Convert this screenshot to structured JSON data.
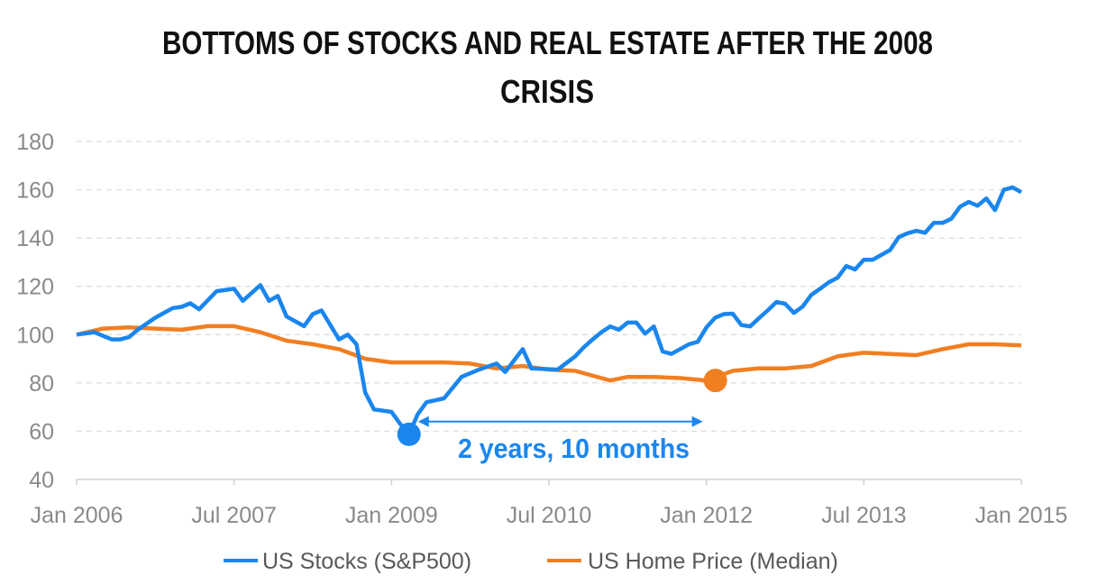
{
  "chart_data": {
    "type": "line",
    "title_lines": [
      "BOTTOMS OF STOCKS AND REAL ESTATE AFTER THE 2008",
      "CRISIS"
    ],
    "xlabel": "",
    "ylabel": "",
    "ylim": [
      40,
      180
    ],
    "yticks": [
      40,
      60,
      80,
      100,
      120,
      140,
      160,
      180
    ],
    "xlim": [
      "2006-01",
      "2015-01"
    ],
    "xticks": [
      {
        "date": "2006-01",
        "label": "Jan 2006"
      },
      {
        "date": "2007-07",
        "label": "Jul 2007"
      },
      {
        "date": "2009-01",
        "label": "Jan 2009"
      },
      {
        "date": "2010-07",
        "label": "Jul 2010"
      },
      {
        "date": "2012-01",
        "label": "Jan 2012"
      },
      {
        "date": "2013-07",
        "label": "Jul 2013"
      },
      {
        "date": "2015-01",
        "label": "Jan 2015"
      }
    ],
    "grid": true,
    "legend_position": "bottom",
    "series": [
      {
        "name": "US Stocks (S&P500)",
        "color": "#1a86ee",
        "points": [
          [
            "2006-01",
            100
          ],
          [
            "2006-03",
            101
          ],
          [
            "2006-05",
            98
          ],
          [
            "2006-06",
            98
          ],
          [
            "2006-07",
            99
          ],
          [
            "2006-08",
            102
          ],
          [
            "2006-10",
            107
          ],
          [
            "2006-12",
            111
          ],
          [
            "2007-01",
            111.5
          ],
          [
            "2007-02",
            113
          ],
          [
            "2007-03",
            110.5
          ],
          [
            "2007-05",
            118
          ],
          [
            "2007-07",
            119
          ],
          [
            "2007-08",
            114
          ],
          [
            "2007-10",
            120.5
          ],
          [
            "2007-11",
            114
          ],
          [
            "2007-12",
            116
          ],
          [
            "2008-01",
            107.5
          ],
          [
            "2008-03",
            103.5
          ],
          [
            "2008-04",
            108.5
          ],
          [
            "2008-05",
            110
          ],
          [
            "2008-07",
            98
          ],
          [
            "2008-08",
            100
          ],
          [
            "2008-09",
            96
          ],
          [
            "2008-10",
            76
          ],
          [
            "2008-11",
            69
          ],
          [
            "2009-01",
            68
          ],
          [
            "2009-02",
            63
          ],
          [
            "2009-03",
            58.7
          ],
          [
            "2009-04",
            67
          ],
          [
            "2009-05",
            72
          ],
          [
            "2009-07",
            73.6
          ],
          [
            "2009-08",
            78
          ],
          [
            "2009-09",
            82.5
          ],
          [
            "2009-11",
            85.5
          ],
          [
            "2010-01",
            88
          ],
          [
            "2010-02",
            84.5
          ],
          [
            "2010-04",
            94
          ],
          [
            "2010-05",
            86
          ],
          [
            "2010-08",
            85.5
          ],
          [
            "2010-10",
            91
          ],
          [
            "2010-11",
            94.8
          ],
          [
            "2010-12",
            98
          ],
          [
            "2011-01",
            101
          ],
          [
            "2011-02",
            103.4
          ],
          [
            "2011-03",
            102
          ],
          [
            "2011-04",
            105
          ],
          [
            "2011-05",
            105
          ],
          [
            "2011-06",
            100.4
          ],
          [
            "2011-07",
            103.4
          ],
          [
            "2011-08",
            93
          ],
          [
            "2011-09",
            92
          ],
          [
            "2011-11",
            96
          ],
          [
            "2011-12",
            97
          ],
          [
            "2012-01",
            103
          ],
          [
            "2012-02",
            107
          ],
          [
            "2012-03",
            108.5
          ],
          [
            "2012-04",
            108.7
          ],
          [
            "2012-05",
            104
          ],
          [
            "2012-06",
            103.4
          ],
          [
            "2012-07",
            106.8
          ],
          [
            "2012-08",
            110
          ],
          [
            "2012-09",
            113.5
          ],
          [
            "2012-10",
            112.8
          ],
          [
            "2012-11",
            109
          ],
          [
            "2012-12",
            111.6
          ],
          [
            "2013-01",
            116.5
          ],
          [
            "2013-02",
            119
          ],
          [
            "2013-03",
            121.7
          ],
          [
            "2013-04",
            123.6
          ],
          [
            "2013-05",
            128.4
          ],
          [
            "2013-06",
            127
          ],
          [
            "2013-07",
            131
          ],
          [
            "2013-08",
            131
          ],
          [
            "2013-09",
            133
          ],
          [
            "2013-10",
            135
          ],
          [
            "2013-11",
            140.4
          ],
          [
            "2013-12",
            142
          ],
          [
            "2014-01",
            143
          ],
          [
            "2014-02",
            142.2
          ],
          [
            "2014-03",
            146.3
          ],
          [
            "2014-04",
            146.3
          ],
          [
            "2014-05",
            148
          ],
          [
            "2014-06",
            153
          ],
          [
            "2014-07",
            155
          ],
          [
            "2014-08",
            153.4
          ],
          [
            "2014-09",
            156.4
          ],
          [
            "2014-10",
            151.6
          ],
          [
            "2014-11",
            160
          ],
          [
            "2014-12",
            161
          ],
          [
            "2015-01",
            159
          ]
        ]
      },
      {
        "name": "US Home Price (Median)",
        "color": "#f07f22",
        "points": [
          [
            "2006-01",
            100
          ],
          [
            "2006-04",
            102.5
          ],
          [
            "2006-07",
            103
          ],
          [
            "2006-10",
            102.5
          ],
          [
            "2007-01",
            102
          ],
          [
            "2007-04",
            103.5
          ],
          [
            "2007-07",
            103.5
          ],
          [
            "2007-10",
            101
          ],
          [
            "2008-01",
            97.5
          ],
          [
            "2008-04",
            96
          ],
          [
            "2008-07",
            94
          ],
          [
            "2008-10",
            90
          ],
          [
            "2009-01",
            88.5
          ],
          [
            "2009-04",
            88.5
          ],
          [
            "2009-07",
            88.5
          ],
          [
            "2009-10",
            88
          ],
          [
            "2010-01",
            86
          ],
          [
            "2010-04",
            87
          ],
          [
            "2010-07",
            85.5
          ],
          [
            "2010-10",
            85
          ],
          [
            "2011-01",
            82
          ],
          [
            "2011-02",
            81
          ],
          [
            "2011-04",
            82.5
          ],
          [
            "2011-07",
            82.5
          ],
          [
            "2011-10",
            82
          ],
          [
            "2012-01",
            81
          ],
          [
            "2012-04",
            85
          ],
          [
            "2012-07",
            86
          ],
          [
            "2012-10",
            86
          ],
          [
            "2013-01",
            87
          ],
          [
            "2013-04",
            91
          ],
          [
            "2013-07",
            92.5
          ],
          [
            "2013-10",
            92
          ],
          [
            "2014-01",
            91.5
          ],
          [
            "2014-04",
            94
          ],
          [
            "2014-07",
            96
          ],
          [
            "2014-10",
            96
          ],
          [
            "2015-01",
            95.5
          ]
        ]
      }
    ],
    "annotations": {
      "stocks_bottom": {
        "date": "2009-03",
        "value": 58.7,
        "color": "#1a86ee"
      },
      "home_bottom": {
        "date": "2012-01",
        "value": 81,
        "color": "#f07f22"
      },
      "gap_arrow": {
        "from": "2009-03",
        "to": "2012-01",
        "value": 64,
        "color": "#1a86ee"
      },
      "gap_label": "2 years, 10 months"
    }
  }
}
